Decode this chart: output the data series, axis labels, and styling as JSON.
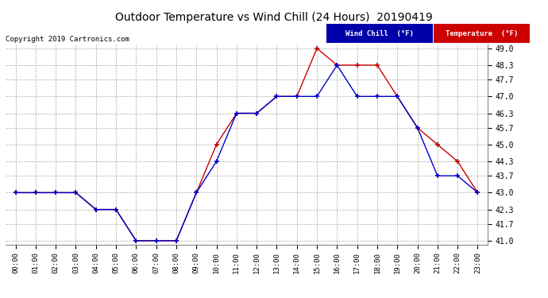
{
  "title": "Outdoor Temperature vs Wind Chill (24 Hours)  20190419",
  "copyright": "Copyright 2019 Cartronics.com",
  "hours": [
    0,
    1,
    2,
    3,
    4,
    5,
    6,
    7,
    8,
    9,
    10,
    11,
    12,
    13,
    14,
    15,
    16,
    17,
    18,
    19,
    20,
    21,
    22,
    23
  ],
  "temperature": [
    43.0,
    43.0,
    43.0,
    43.0,
    42.3,
    42.3,
    41.0,
    41.0,
    41.0,
    43.0,
    45.0,
    46.3,
    46.3,
    47.0,
    47.0,
    49.0,
    48.3,
    48.3,
    48.3,
    47.0,
    45.7,
    45.0,
    44.3,
    43.0
  ],
  "wind_chill": [
    43.0,
    43.0,
    43.0,
    43.0,
    42.3,
    42.3,
    41.0,
    41.0,
    41.0,
    43.0,
    44.3,
    46.3,
    46.3,
    47.0,
    47.0,
    47.0,
    48.3,
    47.0,
    47.0,
    47.0,
    45.7,
    43.7,
    43.7,
    43.0
  ],
  "temp_color": "#cc0000",
  "wind_chill_color": "#0000cc",
  "bg_color": "#ffffff",
  "plot_bg_color": "#ffffff",
  "grid_color": "#aaaaaa",
  "ylim_min": 41.0,
  "ylim_max": 49.0,
  "yticks": [
    41.0,
    41.7,
    42.3,
    43.0,
    43.7,
    44.3,
    45.0,
    45.7,
    46.3,
    47.0,
    47.7,
    48.3,
    49.0
  ],
  "legend_wind_chill_bg": "#0000aa",
  "legend_temp_bg": "#cc0000",
  "legend_wind_chill_text": "Wind Chill  (°F)",
  "legend_temp_text": "Temperature  (°F)"
}
